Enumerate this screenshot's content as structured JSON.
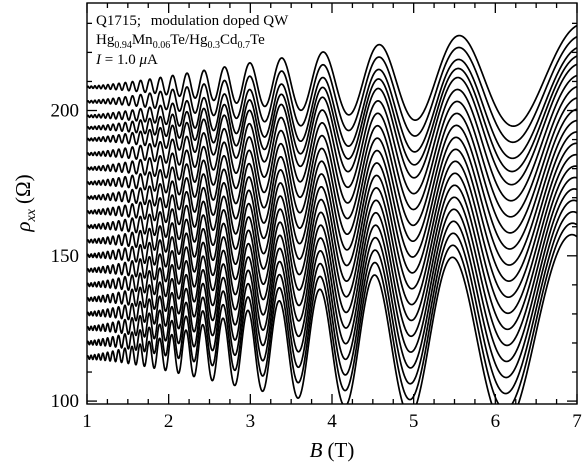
{
  "chart_data": {
    "type": "line",
    "title": "",
    "xlabel": {
      "var": "B",
      "unit": "(T)"
    },
    "ylabel": {
      "var": "ρ",
      "sub": "xx",
      "unit": "(Ω)"
    },
    "xlim": [
      1,
      7
    ],
    "ylim": [
      99,
      237
    ],
    "xticks": [
      1,
      2,
      3,
      4,
      5,
      6,
      7
    ],
    "yticks": [
      100,
      150,
      200
    ],
    "x_tick_labels": [
      "1",
      "2",
      "3",
      "4",
      "5",
      "6",
      "7"
    ],
    "y_tick_labels": [
      "100",
      "150",
      "200"
    ],
    "grid": false,
    "annotations": {
      "sample": "Q1715;",
      "description": "modulation doped QW",
      "material": {
        "a": "Hg",
        "a_sub": "0.94",
        "b": "Mn",
        "b_sub": "0.06",
        "c": "Te/Hg",
        "c_sub": "0.3",
        "d": "Cd",
        "d_sub": "0.7",
        "e": "Te"
      },
      "current": {
        "var": "I",
        "eq": " = 1.0 ",
        "mu": "μ",
        "unit": "A"
      }
    },
    "series_baselines_at_B1": [
      115,
      120,
      125,
      130,
      135,
      140,
      145,
      150,
      155,
      160,
      165,
      170,
      175,
      180,
      185,
      190,
      194,
      198,
      203,
      208
    ],
    "oscillation": {
      "period_1_over_B": 0.0385,
      "phase": 0.5,
      "damping_B0": 3.0,
      "curve_count": 20
    }
  }
}
